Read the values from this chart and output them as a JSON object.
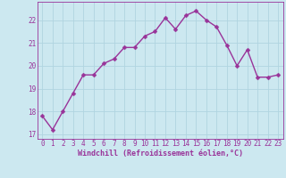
{
  "x": [
    0,
    1,
    2,
    3,
    4,
    5,
    6,
    7,
    8,
    9,
    10,
    11,
    12,
    13,
    14,
    15,
    16,
    17,
    18,
    19,
    20,
    21,
    22,
    23
  ],
  "y": [
    17.8,
    17.2,
    18.0,
    18.8,
    19.6,
    19.6,
    20.1,
    20.3,
    20.8,
    20.8,
    21.3,
    21.5,
    22.1,
    21.6,
    22.2,
    22.4,
    22.0,
    21.7,
    20.9,
    20.0,
    20.7,
    19.5,
    19.5,
    19.6
  ],
  "line_color": "#993399",
  "marker": "D",
  "marker_size": 2.5,
  "line_width": 1.0,
  "bg_color": "#cce8f0",
  "grid_color": "#b0d4e0",
  "xlabel": "Windchill (Refroidissement éolien,°C)",
  "xlabel_color": "#993399",
  "tick_color": "#993399",
  "ylim": [
    16.8,
    22.8
  ],
  "xlim": [
    -0.5,
    23.5
  ],
  "yticks": [
    17,
    18,
    19,
    20,
    21,
    22
  ],
  "xticks": [
    0,
    1,
    2,
    3,
    4,
    5,
    6,
    7,
    8,
    9,
    10,
    11,
    12,
    13,
    14,
    15,
    16,
    17,
    18,
    19,
    20,
    21,
    22,
    23
  ],
  "xtick_labels": [
    "0",
    "1",
    "2",
    "3",
    "4",
    "5",
    "6",
    "7",
    "8",
    "9",
    "10",
    "11",
    "12",
    "13",
    "14",
    "15",
    "16",
    "17",
    "18",
    "19",
    "20",
    "21",
    "22",
    "23"
  ],
  "ytick_labels": [
    "17",
    "18",
    "19",
    "20",
    "21",
    "22"
  ],
  "tick_fontsize": 5.5,
  "xlabel_fontsize": 6.0
}
